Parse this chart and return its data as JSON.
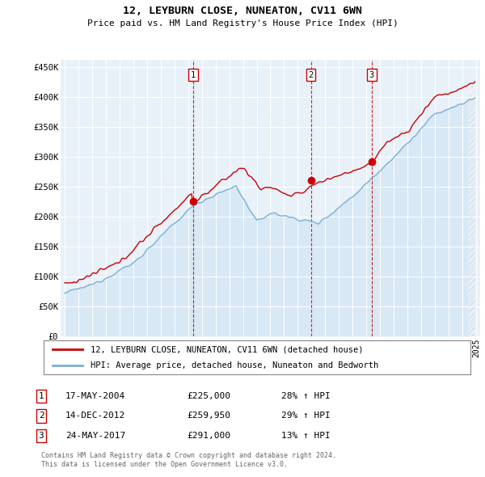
{
  "title1": "12, LEYBURN CLOSE, NUNEATON, CV11 6WN",
  "title2": "Price paid vs. HM Land Registry's House Price Index (HPI)",
  "ylim": [
    0,
    462000
  ],
  "yticks": [
    0,
    50000,
    100000,
    150000,
    200000,
    250000,
    300000,
    350000,
    400000,
    450000
  ],
  "ytick_labels": [
    "£0",
    "£50K",
    "£100K",
    "£150K",
    "£200K",
    "£250K",
    "£300K",
    "£350K",
    "£400K",
    "£450K"
  ],
  "xlim_start": 1994.7,
  "xlim_end": 2025.3,
  "xticks": [
    1995,
    1996,
    1997,
    1998,
    1999,
    2000,
    2001,
    2002,
    2003,
    2004,
    2005,
    2006,
    2007,
    2008,
    2009,
    2010,
    2011,
    2012,
    2013,
    2014,
    2015,
    2016,
    2017,
    2018,
    2019,
    2020,
    2021,
    2022,
    2023,
    2024,
    2025
  ],
  "price_paid_color": "#cc0000",
  "hpi_color": "#7aafd4",
  "hpi_fill_color": "#d8e8f5",
  "sale_markers": [
    {
      "label": "1",
      "year": 2004.38,
      "price": 225000
    },
    {
      "label": "2",
      "year": 2012.96,
      "price": 259950
    },
    {
      "label": "3",
      "year": 2017.39,
      "price": 291000
    }
  ],
  "legend_line1": "12, LEYBURN CLOSE, NUNEATON, CV11 6WN (detached house)",
  "legend_line2": "HPI: Average price, detached house, Nuneaton and Bedworth",
  "table_rows": [
    {
      "num": "1",
      "date": "17-MAY-2004",
      "price": "£225,000",
      "change": "28% ↑ HPI"
    },
    {
      "num": "2",
      "date": "14-DEC-2012",
      "price": "£259,950",
      "change": "29% ↑ HPI"
    },
    {
      "num": "3",
      "date": "24-MAY-2017",
      "price": "£291,000",
      "change": "13% ↑ HPI"
    }
  ],
  "footer1": "Contains HM Land Registry data © Crown copyright and database right 2024.",
  "footer2": "This data is licensed under the Open Government Licence v3.0.",
  "background_color": "#e8f0f8",
  "hatch_year": 2024.5
}
